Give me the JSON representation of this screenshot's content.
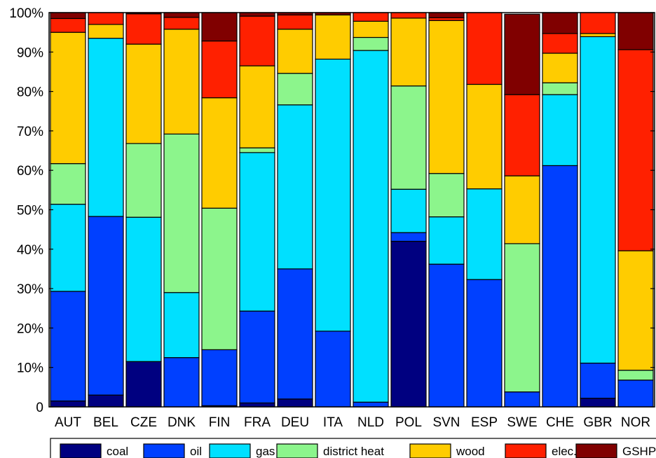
{
  "chart_data": {
    "type": "bar",
    "stacked": true,
    "categories": [
      "AUT",
      "BEL",
      "CZE",
      "DNK",
      "FIN",
      "FRA",
      "DEU",
      "ITA",
      "NLD",
      "POL",
      "SVN",
      "ESP",
      "SWE",
      "CHE",
      "GBR",
      "NOR"
    ],
    "y_unit": "percent",
    "ylim": [
      0,
      100
    ],
    "yticks": [
      "0",
      "10%",
      "20%",
      "30%",
      "40%",
      "50%",
      "60%",
      "70%",
      "80%",
      "90%",
      "100%"
    ],
    "legend_position": "bottom",
    "series": [
      {
        "name": "coal",
        "color": "#000080",
        "values": [
          1.5,
          3,
          11.5,
          0,
          0.3,
          1,
          2,
          0,
          0,
          42,
          0,
          0,
          0,
          0,
          2.2,
          0
        ]
      },
      {
        "name": "oil",
        "color": "#0040ff",
        "values": [
          27.8,
          45.3,
          0,
          12.5,
          14.2,
          23.3,
          33,
          19.2,
          1.2,
          2.2,
          36.2,
          32.3,
          3.8,
          61.2,
          8.9,
          6.8
        ]
      },
      {
        "name": "gas",
        "color": "#00e0ff",
        "values": [
          22.1,
          45.2,
          36.6,
          16.5,
          0,
          40.2,
          41.6,
          69,
          89.2,
          11,
          12,
          23,
          0,
          18,
          82.8,
          0
        ]
      },
      {
        "name": "district heat",
        "color": "#8cf58c",
        "values": [
          10.3,
          0,
          18.7,
          40.2,
          35.9,
          1.2,
          8,
          0,
          3.3,
          26.2,
          11,
          0,
          37.6,
          3,
          0,
          2.5
        ]
      },
      {
        "name": "wood",
        "color": "#ffcc00",
        "values": [
          33.3,
          3.5,
          25.2,
          26.6,
          28,
          20.8,
          11.2,
          11.2,
          4.1,
          17.2,
          38.8,
          26.5,
          17.2,
          7.5,
          0.8,
          30.3
        ]
      },
      {
        "name": "elec.",
        "color": "#ff2000",
        "values": [
          3.5,
          3,
          7.7,
          3,
          14.4,
          12.6,
          3.6,
          0,
          2.2,
          1.4,
          0.7,
          18.2,
          20.6,
          5,
          5.3,
          51
        ]
      },
      {
        "name": "GSHP",
        "color": "#800000",
        "values": [
          1.5,
          0,
          0.3,
          1.2,
          7.2,
          0.9,
          0.6,
          0.6,
          0,
          0,
          1.3,
          0,
          20.4,
          5.3,
          0,
          9.4
        ]
      }
    ]
  }
}
